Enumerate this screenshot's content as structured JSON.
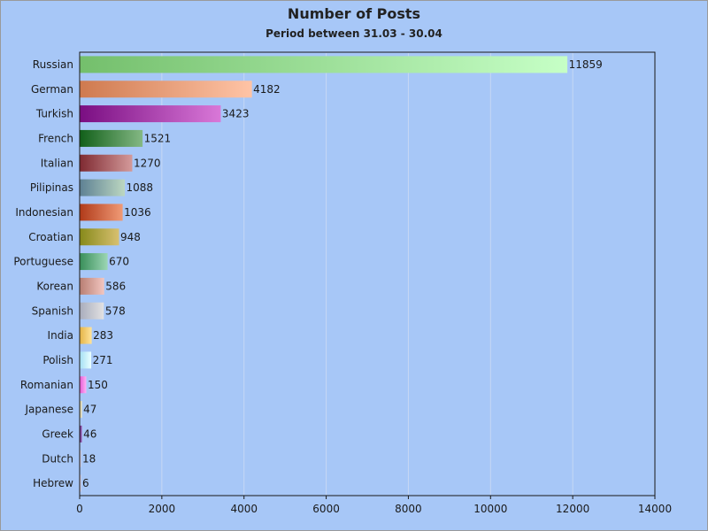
{
  "chart_data": {
    "type": "bar",
    "orientation": "horizontal",
    "title": "Number of Posts",
    "subtitle": "Period between 31.03 - 30.04",
    "xlim": [
      0,
      14000
    ],
    "xticks": [
      0,
      2000,
      4000,
      6000,
      8000,
      10000,
      12000,
      14000
    ],
    "grid": "vertical",
    "categories": [
      "Russian",
      "German",
      "Turkish",
      "French",
      "Italian",
      "Pilipinas",
      "Indonesian",
      "Croatian",
      "Portuguese",
      "Korean",
      "Spanish",
      "India",
      "Polish",
      "Romanian",
      "Japanese",
      "Greek",
      "Dutch",
      "Hebrew"
    ],
    "values": [
      11859,
      4182,
      3423,
      1521,
      1270,
      1088,
      1036,
      948,
      670,
      586,
      578,
      283,
      271,
      150,
      47,
      46,
      18,
      6
    ],
    "bar_colors": [
      [
        "#74bf6c",
        "#c6ffc6"
      ],
      [
        "#cf7a4f",
        "#ffc4a6"
      ],
      [
        "#7a0e82",
        "#d978d8"
      ],
      [
        "#12601a",
        "#84b884"
      ],
      [
        "#7f2a32",
        "#d49a9a"
      ],
      [
        "#5e8194",
        "#bcd7c1"
      ],
      [
        "#b13b1a",
        "#f09a76"
      ],
      [
        "#878a1b",
        "#d8c070"
      ],
      [
        "#3a8f5a",
        "#9cd6b4"
      ],
      [
        "#b97f74",
        "#f2c6c0"
      ],
      [
        "#a9adbd",
        "#e2e2e2"
      ],
      [
        "#e5b54a",
        "#ffe39a"
      ],
      [
        "#a6e0f4",
        "#eaffff"
      ],
      [
        "#e65fd6",
        "#ffb0f7"
      ],
      [
        "#d1c9a0",
        "#f1ebcc"
      ],
      [
        "#6a2a8a",
        "#a070b8"
      ],
      [
        "#c7b5c6",
        "#ece0ea"
      ],
      [
        "#c7b5c6",
        "#ece0ea"
      ]
    ]
  }
}
